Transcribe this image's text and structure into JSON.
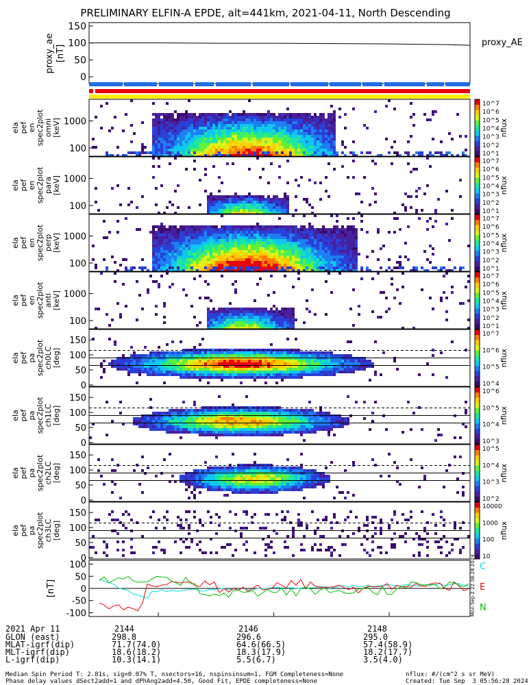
{
  "title": "PRELIMINARY ELFIN-A EPDE, alt=441km, 2021-04-11, North Descending",
  "colors": {
    "orbit_blue": "#1f6fe0",
    "red": "#e8000b",
    "yellow": "#ffee00",
    "green": "#00c000",
    "cyan": "#00dddd",
    "purple": "#3b0b6e"
  },
  "colorscale": [
    "#3b0b6e",
    "#4a1f9a",
    "#2a3fd8",
    "#1d7ff2",
    "#0fc8f0",
    "#1de6a0",
    "#5ef03a",
    "#d8f21a",
    "#ffcc00",
    "#ff8000",
    "#e8000b"
  ],
  "panels": [
    {
      "id": "proxy_ae",
      "ylabel": [
        "proxy_ae",
        "[nT]"
      ],
      "yticks": [
        "150",
        "100",
        "50",
        "0"
      ],
      "ymin": -20,
      "ymax": 160,
      "right_label": "proxy_AE"
    },
    {
      "id": "pef_en_1",
      "ylabel": [
        "ela",
        "pef",
        "en",
        "spec2plot",
        "omni",
        "[keV]"
      ],
      "yticks": [
        "1000",
        "100"
      ],
      "cbar_ticks": [
        "10^7",
        "10^6",
        "10^5",
        "10^4",
        "10^3",
        "10^2",
        "10^1"
      ],
      "cbar_label": "nflux"
    },
    {
      "id": "pef_en_2",
      "ylabel": [
        "ela",
        "pef",
        "en",
        "spec2plot",
        "para",
        "[keV]"
      ],
      "yticks": [
        "1000",
        "100"
      ],
      "cbar_ticks": [
        "10^7",
        "10^6",
        "10^5",
        "10^4",
        "10^3",
        "10^2",
        "10^1"
      ],
      "cbar_label": "nflux"
    },
    {
      "id": "pef_en_3",
      "ylabel": [
        "ela",
        "pef",
        "en",
        "spec2plot",
        "perp",
        "[keV]"
      ],
      "yticks": [
        "1000",
        "100"
      ],
      "cbar_ticks": [
        "10^7",
        "10^6",
        "10^5",
        "10^4",
        "10^3",
        "10^2",
        "10^1"
      ],
      "cbar_label": "nflux"
    },
    {
      "id": "pef_en_4",
      "ylabel": [
        "ela",
        "pef",
        "en",
        "spec2plot",
        "anti",
        "[keV]"
      ],
      "yticks": [
        "1000",
        "100"
      ],
      "cbar_ticks": [
        "10^7",
        "10^6",
        "10^5",
        "10^4",
        "10^3",
        "10^2",
        "10^1"
      ],
      "cbar_label": "nflux"
    },
    {
      "id": "pa_ch0",
      "ylabel": [
        "ela",
        "pef",
        "pa",
        "spec2plot",
        "ch0LC",
        "[deg]"
      ],
      "yticks": [
        "150",
        "100",
        "50",
        "0"
      ],
      "cbar_ticks": [
        "10^7",
        "10^6",
        "10^5",
        "10^4"
      ],
      "cbar_label": "nflux"
    },
    {
      "id": "pa_ch1",
      "ylabel": [
        "ela",
        "pef",
        "pa",
        "spec2plot",
        "ch1LC",
        "[deg]"
      ],
      "yticks": [
        "150",
        "100",
        "50",
        "0"
      ],
      "cbar_ticks": [
        "10^6",
        "10^5",
        "10^4",
        "10^3"
      ],
      "cbar_label": "nflux"
    },
    {
      "id": "pa_ch2",
      "ylabel": [
        "ela",
        "pef",
        "pa",
        "spec2plot",
        "ch2LC",
        "[deg]"
      ],
      "yticks": [
        "150",
        "100",
        "50",
        "0"
      ],
      "cbar_ticks": [
        "10^5",
        "10^4",
        "10^3",
        "10^2"
      ],
      "cbar_label": "nflux"
    },
    {
      "id": "pa_ch3",
      "ylabel": [
        "ela",
        "pef",
        "pa",
        "spec2plot",
        "ch3LC",
        "[deg]"
      ],
      "yticks": [
        "150",
        "100",
        "50",
        "0"
      ],
      "cbar_ticks": [
        "10000",
        "1000",
        "100",
        "10"
      ],
      "cbar_label": "nflux"
    },
    {
      "id": "fgm",
      "ylabel": [
        "[nT]"
      ],
      "yticks": [
        "100",
        "50",
        "0",
        "-50",
        "-100"
      ],
      "legend": [
        "C",
        "E",
        "N"
      ]
    }
  ],
  "chart_data": {
    "type": "multi-panel time series and spectrograms",
    "x": {
      "ticks": [
        "2144",
        "2146",
        "2148"
      ]
    },
    "proxy_ae": {
      "x": [
        2142.8,
        2144,
        2145,
        2146,
        2147,
        2148,
        2149,
        2149.4
      ],
      "y": [
        100,
        100,
        99,
        99,
        98,
        97,
        95,
        93
      ]
    },
    "fgm_series": [
      {
        "name": "C",
        "color": "#00dddd"
      },
      {
        "name": "E",
        "color": "#e8000b"
      },
      {
        "name": "N",
        "color": "#00c000"
      }
    ]
  },
  "footer": {
    "header": "2021 Apr 11",
    "rows": [
      {
        "label": "GLON (east)",
        "v1": "298.8",
        "v2": "296.6",
        "v3": "295.0"
      },
      {
        "label": "MLAT-igrf(dip)",
        "v1": "71.7(74.0)",
        "v2": "64.6(66.5)",
        "v3": "57.4(58.9)"
      },
      {
        "label": "MLT-igrf(dip)",
        "v1": "18.6(18.2)",
        "v2": "18.3(17.9)",
        "v3": "18.2(17.7)"
      },
      {
        "label": "L-igrf(dip)",
        "v1": "10.3(14.1)",
        "v2": "5.5(6.7)",
        "v3": "3.5(4.0)"
      }
    ],
    "note1": "Median Spin Period T: 2.81s, sig=0.07% T, nsectors=16, nspinsinsum=1, FGM Completeness=None",
    "note2": "Phase delay values dSect2add=1 and dPhAng2add=4.50, Good Fit, EPDE completeness=None",
    "nflux_units": "nflux: #/(cm^2 s sr MeV)",
    "created": "Created: Tue Sep  3 05:56:28 2024",
    "sidestamp": "Mon Sep  2 22:38:28 2024"
  }
}
